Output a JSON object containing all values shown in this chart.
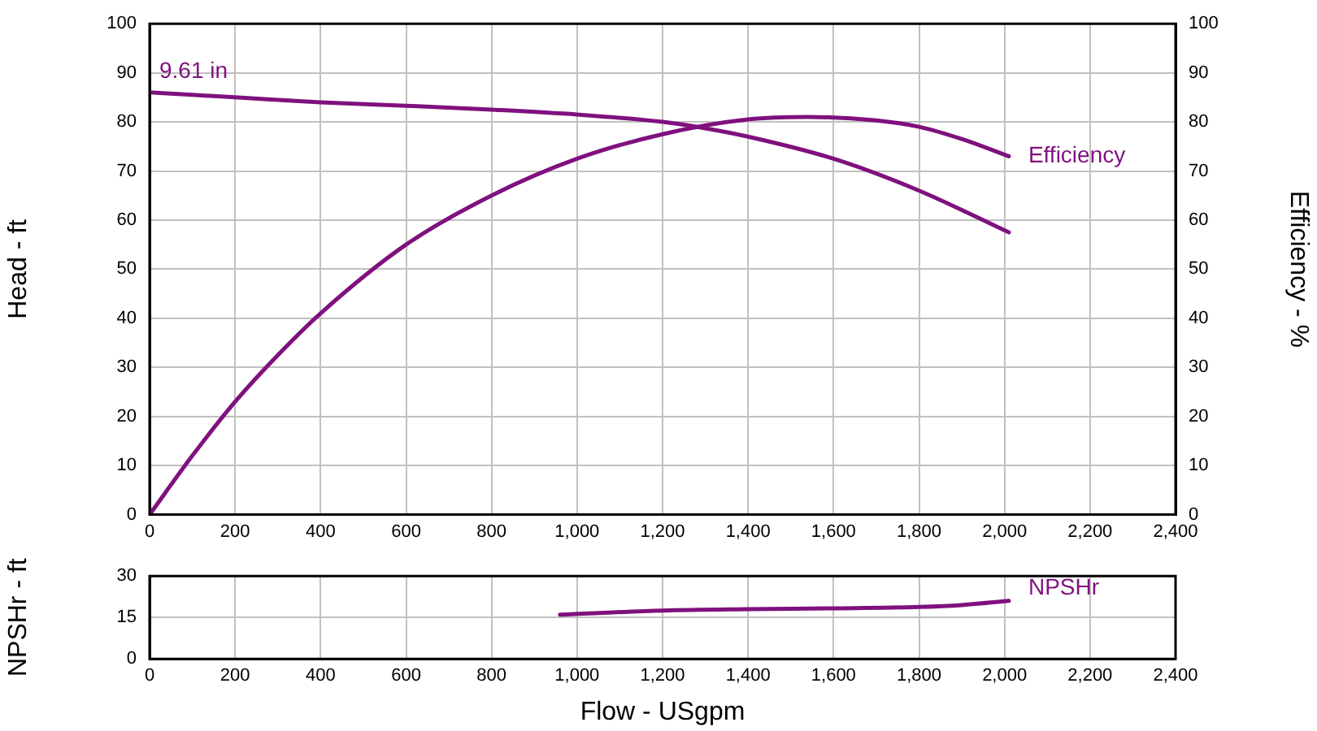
{
  "chart_data": [
    {
      "type": "line",
      "ylabel": "Head - ft",
      "y2label": "Efficiency - %",
      "xlim": [
        0,
        2400
      ],
      "xticks": [
        0,
        200,
        400,
        600,
        800,
        {
          "value": 1000,
          "label": "1,000"
        },
        {
          "value": 1200,
          "label": "1,200"
        },
        {
          "value": 1400,
          "label": "1,400"
        },
        {
          "value": 1600,
          "label": "1,600"
        },
        {
          "value": 1800,
          "label": "1,800"
        },
        {
          "value": 2000,
          "label": "2,000"
        },
        {
          "value": 2200,
          "label": "2,200"
        },
        {
          "value": 2400,
          "label": "2,400"
        }
      ],
      "ylim": [
        0,
        100
      ],
      "yticks": [
        0,
        10,
        20,
        30,
        40,
        50,
        60,
        70,
        80,
        90,
        100
      ],
      "y2lim": [
        0,
        100
      ],
      "y2ticks": [
        0,
        10,
        20,
        30,
        40,
        50,
        60,
        70,
        80,
        90,
        100
      ],
      "grid": true,
      "series": [
        {
          "name": "9.61 in",
          "color": "#7f117e",
          "x": [
            0,
            200,
            400,
            600,
            800,
            1000,
            1200,
            1300,
            1400,
            1600,
            1800,
            2010
          ],
          "values": [
            86,
            85,
            84,
            83.3,
            82.5,
            81.5,
            80,
            78.7,
            77,
            72.5,
            66,
            57.5
          ]
        },
        {
          "name": "Efficiency",
          "color": "#7f117e",
          "axis": "y2",
          "x": [
            0,
            100,
            200,
            300,
            400,
            600,
            800,
            1000,
            1200,
            1400,
            1540,
            1700,
            1800,
            1900,
            2010
          ],
          "values": [
            0,
            12,
            23,
            32.5,
            41,
            55,
            65,
            72.5,
            77.5,
            80.5,
            81,
            80.3,
            79,
            76.5,
            73
          ]
        }
      ]
    },
    {
      "type": "line",
      "xlabel": "Flow - USgpm",
      "ylabel": "NPSHr - ft",
      "xlim": [
        0,
        2400
      ],
      "xticks": [
        0,
        200,
        400,
        600,
        800,
        {
          "value": 1000,
          "label": "1,000"
        },
        {
          "value": 1200,
          "label": "1,200"
        },
        {
          "value": 1400,
          "label": "1,400"
        },
        {
          "value": 1600,
          "label": "1,600"
        },
        {
          "value": 1800,
          "label": "1,800"
        },
        {
          "value": 2000,
          "label": "2,000"
        },
        {
          "value": 2200,
          "label": "2,200"
        },
        {
          "value": 2400,
          "label": "2,400"
        }
      ],
      "ylim": [
        0,
        30
      ],
      "yticks": [
        0,
        15,
        30
      ],
      "grid": true,
      "series": [
        {
          "name": "NPSHr",
          "color": "#7f117e",
          "x": [
            960,
            1200,
            1400,
            1600,
            1800,
            1900,
            2010
          ],
          "values": [
            16,
            17.5,
            18,
            18.3,
            18.8,
            19.5,
            21
          ]
        }
      ]
    }
  ]
}
